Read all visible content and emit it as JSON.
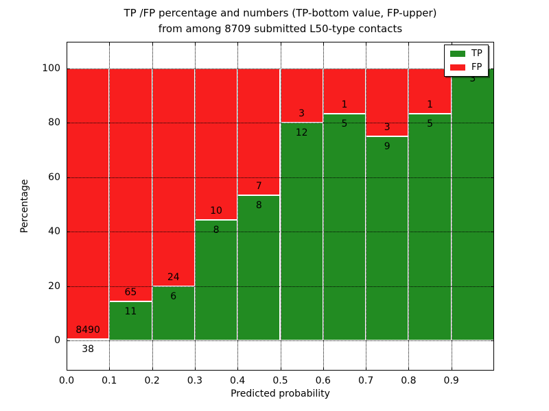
{
  "chart_data": {
    "type": "bar",
    "stacking": "percent",
    "title_line1": "TP /FP percentage and numbers (TP-bottom value, FP-upper)",
    "title_line2": "from among 8709 submitted L50-type contacts",
    "total_contacts": 8709,
    "xlabel": "Predicted probability",
    "ylabel": "Percentage",
    "x_tick_labels": [
      "0.0",
      "0.1",
      "0.2",
      "0.3",
      "0.4",
      "0.5",
      "0.6",
      "0.7",
      "0.8",
      "0.9"
    ],
    "y_ticks": [
      0,
      20,
      40,
      60,
      80,
      100
    ],
    "xlim": [
      0.0,
      1.0
    ],
    "ylim": [
      -11,
      110
    ],
    "grid": true,
    "legend_position": "upper right",
    "colors": {
      "tp": "#228b22",
      "fp": "#f81e1e"
    },
    "legend": [
      {
        "label": "TP",
        "series": "tp"
      },
      {
        "label": "FP",
        "series": "fp"
      }
    ],
    "bins": [
      {
        "x_start": 0.0,
        "x_end": 0.1,
        "tp": 38,
        "fp": 8490
      },
      {
        "x_start": 0.1,
        "x_end": 0.2,
        "tp": 11,
        "fp": 65
      },
      {
        "x_start": 0.2,
        "x_end": 0.3,
        "tp": 6,
        "fp": 24
      },
      {
        "x_start": 0.3,
        "x_end": 0.4,
        "tp": 8,
        "fp": 10
      },
      {
        "x_start": 0.4,
        "x_end": 0.5,
        "tp": 8,
        "fp": 7
      },
      {
        "x_start": 0.5,
        "x_end": 0.6,
        "tp": 12,
        "fp": 3
      },
      {
        "x_start": 0.6,
        "x_end": 0.7,
        "tp": 5,
        "fp": 1
      },
      {
        "x_start": 0.7,
        "x_end": 0.8,
        "tp": 9,
        "fp": 3
      },
      {
        "x_start": 0.8,
        "x_end": 0.9,
        "tp": 5,
        "fp": 1
      },
      {
        "x_start": 0.9,
        "x_end": 1.0,
        "tp": 3,
        "fp": 0
      }
    ]
  }
}
